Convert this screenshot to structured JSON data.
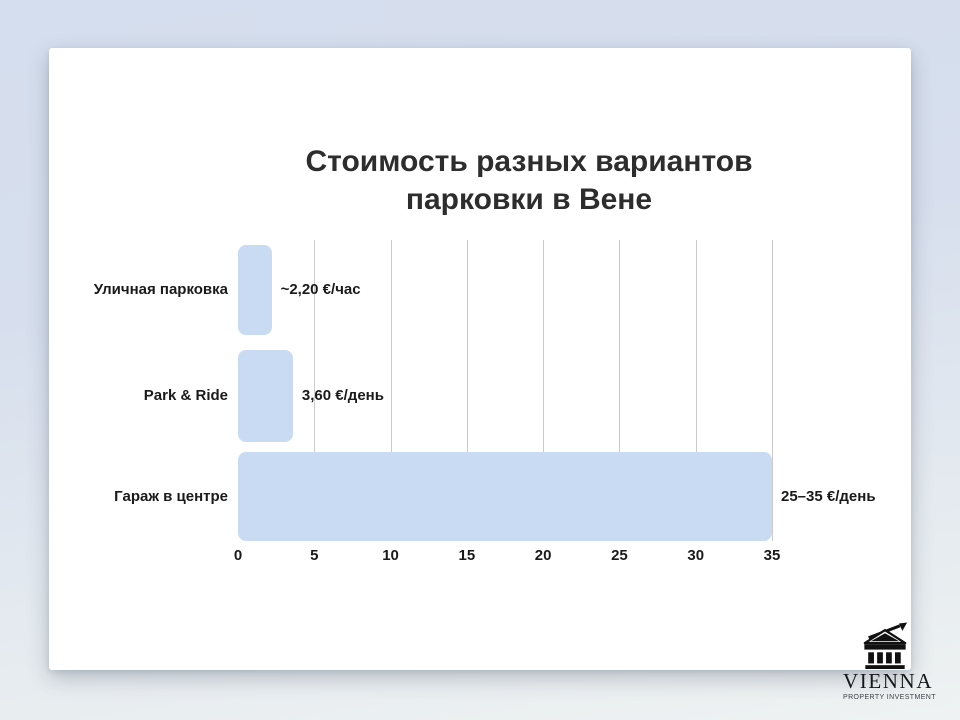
{
  "title": {
    "line1": "Стоимость разных вариантов",
    "line2": "парковки в Вене"
  },
  "chart_data": {
    "type": "bar",
    "orientation": "horizontal",
    "title": "Стоимость разных вариантов парковки в Вене",
    "categories": [
      "Уличная парковка",
      "Park & Ride",
      "Гараж в центре"
    ],
    "values": [
      2.2,
      3.6,
      35
    ],
    "value_labels": [
      "~2,20 €/час",
      "3,60 €/день",
      "25–35 €/день"
    ],
    "xticks": [
      0,
      5,
      10,
      15,
      20,
      25,
      30,
      35
    ],
    "xlim": [
      0,
      35
    ],
    "grid": true,
    "legend_position": "none",
    "bar_color": "#c8dbf2",
    "gridline_color": "#cbcbcb"
  },
  "logo": {
    "name": "VIENNA",
    "subtitle": "PROPERTY INVESTMENT",
    "icon": "classical-building-with-growth-arrow-icon"
  },
  "colors": {
    "background_top": "#d5deee",
    "background_bottom": "#eef2f2",
    "card": "#ffffff",
    "title_text": "#2d2d2d",
    "label_text": "#1a1a1a"
  }
}
